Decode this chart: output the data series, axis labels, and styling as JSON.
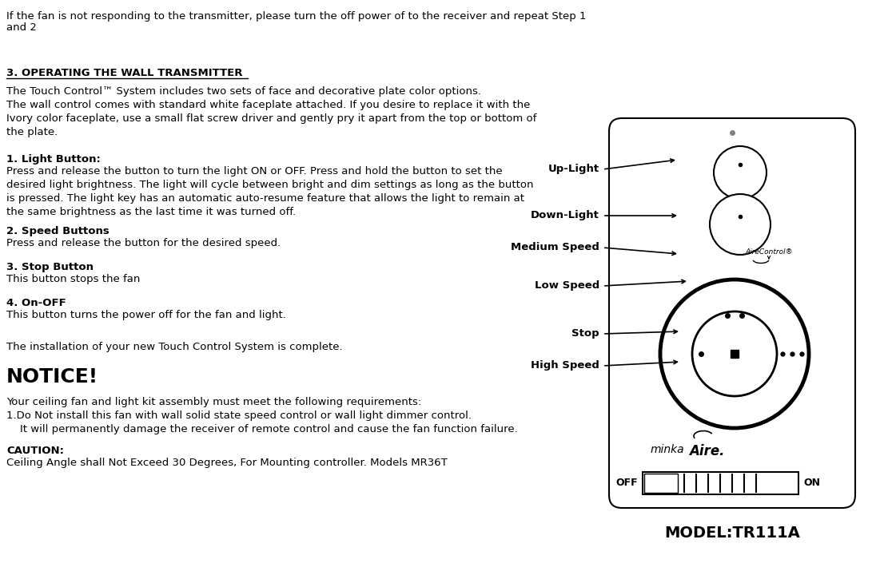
{
  "bg_color": "#ffffff",
  "text_color": "#000000",
  "fig_width": 11.06,
  "fig_height": 7.3,
  "line1": "If the fan is not responding to the transmitter, please turn the off power of to the receiver and repeat Step 1",
  "line2": "and 2",
  "section_title": "3. OPERATING THE WALL TRANSMITTER",
  "para1": "The Touch Control™ System includes two sets of face and decorative plate color options.\nThe wall control comes with standard white faceplate attached. If you desire to replace it with the\nIvory color faceplate, use a small flat screw driver and gently pry it apart from the top or bottom of\nthe plate.",
  "item1_title": "1. Light Button:",
  "item1_body": "Press and release the button to turn the light ON or OFF. Press and hold the button to set the\ndesired light brightness. The light will cycle between bright and dim settings as long as the button\nis pressed. The light key has an automatic auto-resume feature that allows the light to remain at\nthe same brightness as the last time it was turned off.",
  "item2_title": "2. Speed Buttons",
  "item2_body": "Press and release the button for the desired speed.",
  "item3_title": "3. Stop Button",
  "item3_body": "This button stops the fan",
  "item4_title": "4. On-OFF",
  "item4_body": "This button turns the power off for the fan and light.",
  "complete_text": "The installation of your new Touch Control System is complete.",
  "notice_title": "NOTICE!",
  "notice_body": "Your ceiling fan and light kit assembly must meet the following requirements:\n1.Do Not install this fan with wall solid state speed control or wall light dimmer control.\n    It will permanently damage the receiver of remote control and cause the fan function failure.",
  "caution_title": "CAUTION:",
  "caution_body": "Ceiling Angle shall Not Exceed 30 Degrees, For Mounting controller. Models MR36T",
  "model_text": "MODEL:TR111A",
  "label_up_light": "Up-Light",
  "label_down_light": "Down-Light",
  "label_medium_speed": "Medium Speed",
  "label_low_speed": "Low Speed",
  "label_stop": "Stop",
  "label_high_speed": "High Speed",
  "label_off": "OFF",
  "label_on": "ON",
  "label_aire_control": "AireControl®"
}
